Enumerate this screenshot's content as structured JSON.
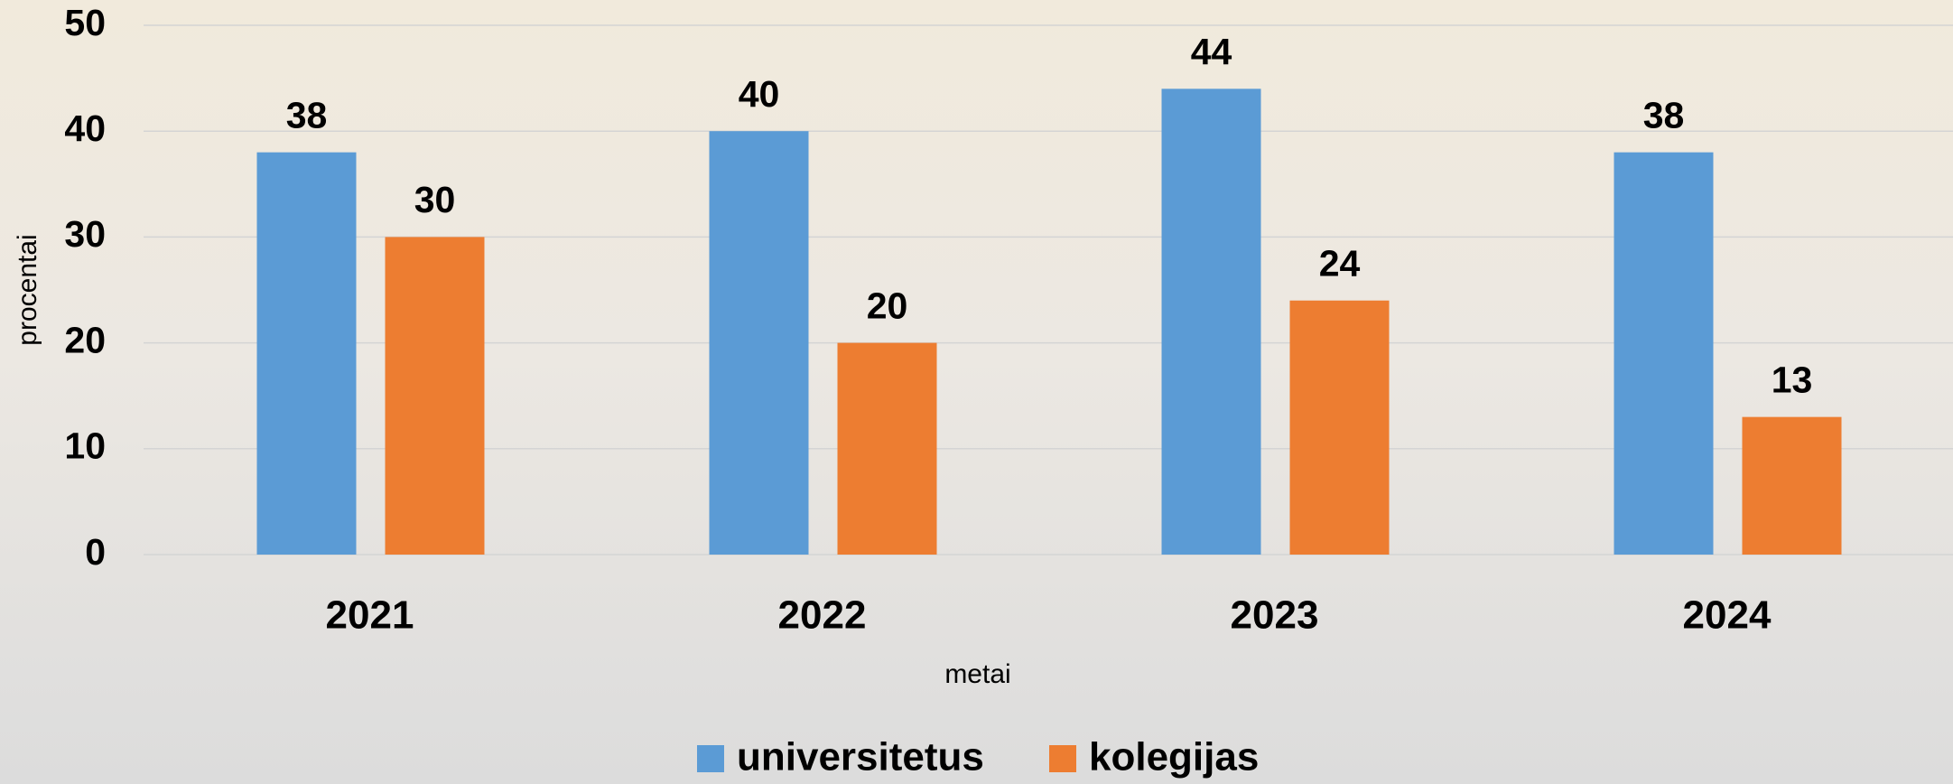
{
  "chart_data": {
    "type": "bar",
    "x_label": "metai",
    "y_label": "procentai",
    "categories": [
      "2021",
      "2022",
      "2023",
      "2024"
    ],
    "series": [
      {
        "name": "universitetus",
        "color": "#5b9bd5",
        "values": [
          38,
          40,
          44,
          38
        ]
      },
      {
        "name": "kolegijas",
        "color": "#ed7d31",
        "values": [
          30,
          20,
          24,
          13
        ]
      }
    ],
    "ylim": [
      0,
      50
    ],
    "yticks": [
      0,
      10,
      20,
      30,
      40,
      50
    ],
    "grid": true,
    "legend": "bottom"
  }
}
